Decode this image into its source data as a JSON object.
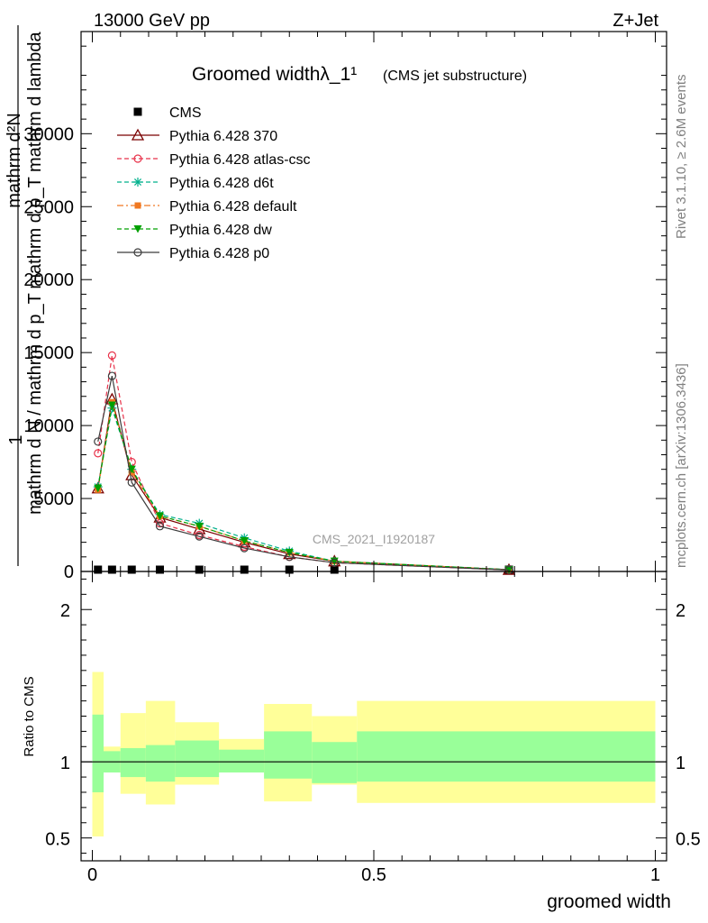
{
  "header": {
    "energy_label": "13000 GeV pp",
    "process_label": "Z+Jet"
  },
  "side_labels": {
    "rivet": "Rivet 3.1.10, ≥ 2.6M events",
    "mcplots": "mcplots.cern.ch [arXiv:1306.3436]"
  },
  "chart_data": [
    {
      "type": "line",
      "title_main": "Groomed widthλ_1¹",
      "title_sub": "(CMS jet substructure)",
      "ylabel_numerator": "mathrm d²N",
      "ylabel_denominator": "mathrm d p_T mathrm d lambda",
      "ylabel_one": "1",
      "ylabel_norm": "mathrm d N / mathrm d p_T",
      "watermark": "CMS_2021_I1920187",
      "xlim": [
        -0.02,
        1.02
      ],
      "ylim": [
        0,
        37000
      ],
      "yticks": [
        0,
        5000,
        10000,
        15000,
        20000,
        25000,
        30000
      ],
      "ytick_labels": [
        "0",
        "5000",
        "10000",
        "15000",
        "20000",
        "25000",
        "30000"
      ],
      "legend_position": "top-left",
      "x": [
        0.01,
        0.035,
        0.07,
        0.12,
        0.19,
        0.27,
        0.35,
        0.43,
        0.74
      ],
      "series": [
        {
          "name": "CMS",
          "color": "#000000",
          "marker": "square",
          "dash": "none",
          "values": [
            0,
            0,
            0,
            0,
            0,
            0,
            0,
            0,
            0
          ]
        },
        {
          "name": "Pythia 6.428 370",
          "color": "#7a0000",
          "marker": "open-triangle",
          "dash": "solid",
          "values": [
            5700,
            11800,
            6600,
            3700,
            2900,
            2000,
            1200,
            700,
            120
          ]
        },
        {
          "name": "Pythia 6.428 atlas-csc",
          "color": "#e8324a",
          "marker": "open-circle",
          "dash": "dashed",
          "values": [
            8100,
            14800,
            7500,
            3300,
            2500,
            1700,
            1000,
            600,
            100
          ]
        },
        {
          "name": "Pythia 6.428 d6t",
          "color": "#00b08c",
          "marker": "star",
          "dash": "dashed",
          "values": [
            5800,
            11200,
            7000,
            3900,
            3300,
            2300,
            1400,
            700,
            130
          ]
        },
        {
          "name": "Pythia 6.428 default",
          "color": "#f07820",
          "marker": "filled-square",
          "dash": "dashdot",
          "values": [
            5600,
            11600,
            6800,
            3800,
            3100,
            2100,
            1300,
            700,
            120
          ]
        },
        {
          "name": "Pythia 6.428 dw",
          "color": "#00a000",
          "marker": "filled-triangle-down",
          "dash": "dashed",
          "values": [
            5700,
            11400,
            7000,
            3800,
            3100,
            2100,
            1300,
            700,
            120
          ]
        },
        {
          "name": "Pythia 6.428 p0",
          "color": "#3c3c3c",
          "marker": "open-circle",
          "dash": "solid",
          "values": [
            8900,
            13400,
            6100,
            3100,
            2400,
            1600,
            1000,
            600,
            100
          ]
        }
      ]
    },
    {
      "type": "area",
      "ylabel": "Ratio to CMS",
      "xlabel": "groomed width",
      "xlim": [
        -0.02,
        1.02
      ],
      "ylim": [
        0.35,
        2.25
      ],
      "xticks": [
        0,
        0.5,
        1
      ],
      "xtick_labels": [
        "0",
        "0.5",
        "1"
      ],
      "yticks": [
        0.5,
        1,
        2
      ],
      "ytick_labels": [
        "0.5",
        "1",
        "2"
      ],
      "reference_line": 1,
      "band_colors": {
        "outer": "#ffff99",
        "inner": "#99ff99"
      },
      "bins": [
        {
          "lo": 0.0,
          "hi": 0.02,
          "outer": [
            0.51,
            1.59
          ],
          "inner": [
            0.8,
            1.31
          ]
        },
        {
          "lo": 0.02,
          "hi": 0.05,
          "outer": [
            0.93,
            1.1
          ],
          "inner": [
            0.93,
            1.07
          ]
        },
        {
          "lo": 0.05,
          "hi": 0.095,
          "outer": [
            0.79,
            1.32
          ],
          "inner": [
            0.9,
            1.09
          ]
        },
        {
          "lo": 0.095,
          "hi": 0.147,
          "outer": [
            0.72,
            1.4
          ],
          "inner": [
            0.87,
            1.11
          ]
        },
        {
          "lo": 0.147,
          "hi": 0.225,
          "outer": [
            0.85,
            1.26
          ],
          "inner": [
            0.9,
            1.14
          ]
        },
        {
          "lo": 0.225,
          "hi": 0.305,
          "outer": [
            0.93,
            1.15
          ],
          "inner": [
            0.93,
            1.08
          ]
        },
        {
          "lo": 0.305,
          "hi": 0.39,
          "outer": [
            0.74,
            1.38
          ],
          "inner": [
            0.89,
            1.2
          ]
        },
        {
          "lo": 0.39,
          "hi": 0.47,
          "outer": [
            0.85,
            1.3
          ],
          "inner": [
            0.86,
            1.13
          ]
        },
        {
          "lo": 0.47,
          "hi": 1.0,
          "outer": [
            0.73,
            1.4
          ],
          "inner": [
            0.87,
            1.2
          ]
        }
      ]
    }
  ]
}
